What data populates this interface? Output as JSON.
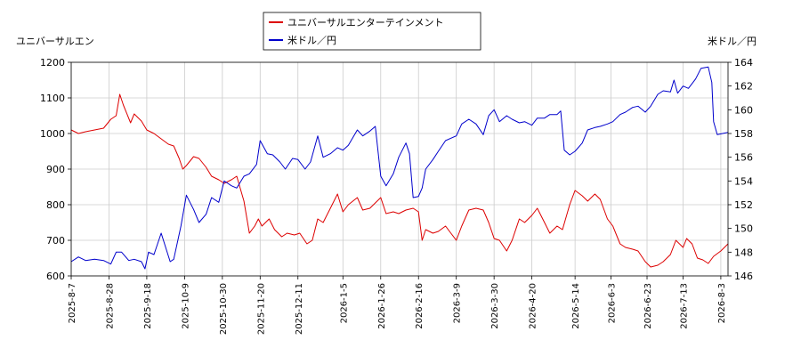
{
  "chart_data": {
    "type": "line",
    "left_axis_label": "ユニバーサルエン",
    "right_axis_label": "米ドル／円",
    "legend": {
      "placement": "top-center",
      "entries": [
        "ユニバーサルエンターテインメント",
        "米ドル／円"
      ]
    },
    "colors": {
      "stock": "#dd0000",
      "fx": "#0000cc",
      "grid": "#cccccc",
      "plot_border": "#000000"
    },
    "grid": true,
    "left_ylim": [
      600,
      1200
    ],
    "left_yticks": [
      600,
      700,
      800,
      900,
      1000,
      1100,
      1200
    ],
    "right_ylim": [
      146,
      164
    ],
    "right_yticks": [
      146,
      148,
      150,
      152,
      154,
      156,
      158,
      160,
      162,
      164
    ],
    "x_ticks": [
      "2025-8-7",
      "2025-8-28",
      "2025-9-18",
      "2025-10-9",
      "2025-10-30",
      "2025-11-20",
      "2025-12-11",
      "2026-1-5",
      "2026-1-26",
      "2026-2-16",
      "2026-3-9",
      "2026-3-30",
      "2026-4-20",
      "2026-5-14",
      "2026-6-3",
      "2026-6-23",
      "2026-7-13",
      "2026-8-3"
    ],
    "x_range": [
      "2025-8-7",
      "2026-8-7"
    ],
    "series": [
      {
        "name": "ユニバーサルエンターテインメント",
        "axis": "left",
        "points": [
          [
            "2025-8-7",
            1010
          ],
          [
            "2025-8-11",
            1000
          ],
          [
            "2025-8-15",
            1005
          ],
          [
            "2025-8-20",
            1010
          ],
          [
            "2025-8-25",
            1015
          ],
          [
            "2025-8-29",
            1040
          ],
          [
            "2025-9-1",
            1050
          ],
          [
            "2025-9-3",
            1110
          ],
          [
            "2025-9-5",
            1080
          ],
          [
            "2025-9-9",
            1030
          ],
          [
            "2025-9-11",
            1055
          ],
          [
            "2025-9-15",
            1035
          ],
          [
            "2025-9-18",
            1010
          ],
          [
            "2025-9-22",
            1000
          ],
          [
            "2025-9-26",
            985
          ],
          [
            "2025-9-30",
            970
          ],
          [
            "2025-10-3",
            965
          ],
          [
            "2025-10-6",
            930
          ],
          [
            "2025-10-8",
            900
          ],
          [
            "2025-10-10",
            910
          ],
          [
            "2025-10-14",
            935
          ],
          [
            "2025-10-17",
            930
          ],
          [
            "2025-10-21",
            905
          ],
          [
            "2025-10-24",
            880
          ],
          [
            "2025-10-28",
            870
          ],
          [
            "2025-10-31",
            860
          ],
          [
            "2025-11-4",
            870
          ],
          [
            "2025-11-7",
            880
          ],
          [
            "2025-11-11",
            810
          ],
          [
            "2025-11-14",
            720
          ],
          [
            "2025-11-17",
            740
          ],
          [
            "2025-11-19",
            760
          ],
          [
            "2025-11-21",
            740
          ],
          [
            "2025-11-25",
            760
          ],
          [
            "2025-11-28",
            730
          ],
          [
            "2025-12-2",
            710
          ],
          [
            "2025-12-5",
            720
          ],
          [
            "2025-12-9",
            715
          ],
          [
            "2025-12-12",
            720
          ],
          [
            "2025-12-16",
            690
          ],
          [
            "2025-12-19",
            700
          ],
          [
            "2025-12-22",
            760
          ],
          [
            "2025-12-25",
            750
          ],
          [
            "2025-12-29",
            790
          ],
          [
            "2026-1-2",
            830
          ],
          [
            "2026-1-5",
            780
          ],
          [
            "2026-1-8",
            800
          ],
          [
            "2026-1-13",
            820
          ],
          [
            "2026-1-16",
            785
          ],
          [
            "2026-1-20",
            790
          ],
          [
            "2026-1-23",
            805
          ],
          [
            "2026-1-26",
            820
          ],
          [
            "2026-1-29",
            775
          ],
          [
            "2026-2-2",
            780
          ],
          [
            "2026-2-5",
            775
          ],
          [
            "2026-2-9",
            785
          ],
          [
            "2026-2-13",
            790
          ],
          [
            "2026-2-16",
            780
          ],
          [
            "2026-2-18",
            700
          ],
          [
            "2026-2-20",
            730
          ],
          [
            "2026-2-24",
            720
          ],
          [
            "2026-2-27",
            725
          ],
          [
            "2026-3-3",
            740
          ],
          [
            "2026-3-6",
            720
          ],
          [
            "2026-3-9",
            700
          ],
          [
            "2026-3-12",
            740
          ],
          [
            "2026-3-16",
            785
          ],
          [
            "2026-3-20",
            790
          ],
          [
            "2026-3-24",
            785
          ],
          [
            "2026-3-27",
            750
          ],
          [
            "2026-3-30",
            705
          ],
          [
            "2026-4-2",
            700
          ],
          [
            "2026-4-6",
            670
          ],
          [
            "2026-4-9",
            700
          ],
          [
            "2026-4-13",
            760
          ],
          [
            "2026-4-16",
            750
          ],
          [
            "2026-4-20",
            770
          ],
          [
            "2026-4-23",
            790
          ],
          [
            "2026-4-27",
            750
          ],
          [
            "2026-4-30",
            720
          ],
          [
            "2026-5-4",
            740
          ],
          [
            "2026-5-7",
            730
          ],
          [
            "2026-5-11",
            800
          ],
          [
            "2026-5-14",
            840
          ],
          [
            "2026-5-18",
            825
          ],
          [
            "2026-5-21",
            810
          ],
          [
            "2026-5-25",
            830
          ],
          [
            "2026-5-28",
            815
          ],
          [
            "2026-6-1",
            760
          ],
          [
            "2026-6-4",
            740
          ],
          [
            "2026-6-8",
            690
          ],
          [
            "2026-6-11",
            680
          ],
          [
            "2026-6-15",
            675
          ],
          [
            "2026-6-18",
            670
          ],
          [
            "2026-6-22",
            640
          ],
          [
            "2026-6-25",
            625
          ],
          [
            "2026-6-29",
            630
          ],
          [
            "2026-7-2",
            640
          ],
          [
            "2026-7-6",
            660
          ],
          [
            "2026-7-9",
            700
          ],
          [
            "2026-7-13",
            680
          ],
          [
            "2026-7-15",
            705
          ],
          [
            "2026-7-18",
            690
          ],
          [
            "2026-7-21",
            650
          ],
          [
            "2026-7-24",
            645
          ],
          [
            "2026-7-27",
            635
          ],
          [
            "2026-7-30",
            655
          ],
          [
            "2026-8-3",
            670
          ],
          [
            "2026-8-7",
            690
          ]
        ]
      },
      {
        "name": "米ドル／円",
        "axis": "right",
        "points": [
          [
            "2025-8-7",
            147.2
          ],
          [
            "2025-8-11",
            147.6
          ],
          [
            "2025-8-15",
            147.3
          ],
          [
            "2025-8-20",
            147.4
          ],
          [
            "2025-8-25",
            147.3
          ],
          [
            "2025-8-29",
            147.0
          ],
          [
            "2025-9-1",
            148.0
          ],
          [
            "2025-9-4",
            148.0
          ],
          [
            "2025-9-8",
            147.3
          ],
          [
            "2025-9-11",
            147.4
          ],
          [
            "2025-9-15",
            147.2
          ],
          [
            "2025-9-17",
            146.6
          ],
          [
            "2025-9-19",
            148.0
          ],
          [
            "2025-9-22",
            147.8
          ],
          [
            "2025-9-26",
            149.6
          ],
          [
            "2025-10-1",
            147.2
          ],
          [
            "2025-10-3",
            147.4
          ],
          [
            "2025-10-7",
            150.2
          ],
          [
            "2025-10-10",
            152.8
          ],
          [
            "2025-10-14",
            151.6
          ],
          [
            "2025-10-17",
            150.5
          ],
          [
            "2025-10-21",
            151.2
          ],
          [
            "2025-10-24",
            152.6
          ],
          [
            "2025-10-28",
            152.2
          ],
          [
            "2025-10-31",
            154.0
          ],
          [
            "2025-11-4",
            153.6
          ],
          [
            "2025-11-7",
            153.4
          ],
          [
            "2025-11-11",
            154.4
          ],
          [
            "2025-11-14",
            154.6
          ],
          [
            "2025-11-18",
            155.4
          ],
          [
            "2025-11-20",
            157.4
          ],
          [
            "2025-11-24",
            156.3
          ],
          [
            "2025-11-27",
            156.2
          ],
          [
            "2025-12-1",
            155.6
          ],
          [
            "2025-12-4",
            155.0
          ],
          [
            "2025-12-8",
            155.9
          ],
          [
            "2025-12-11",
            155.8
          ],
          [
            "2025-12-15",
            155.0
          ],
          [
            "2025-12-18",
            155.6
          ],
          [
            "2025-12-22",
            157.8
          ],
          [
            "2025-12-25",
            156.0
          ],
          [
            "2025-12-29",
            156.3
          ],
          [
            "2026-1-2",
            156.8
          ],
          [
            "2026-1-5",
            156.6
          ],
          [
            "2026-1-8",
            157.0
          ],
          [
            "2026-1-13",
            158.3
          ],
          [
            "2026-1-16",
            157.8
          ],
          [
            "2026-1-20",
            158.2
          ],
          [
            "2026-1-23",
            158.6
          ],
          [
            "2026-1-26",
            154.4
          ],
          [
            "2026-1-29",
            153.6
          ],
          [
            "2026-2-2",
            154.6
          ],
          [
            "2026-2-5",
            156.0
          ],
          [
            "2026-2-9",
            157.2
          ],
          [
            "2026-2-11",
            156.3
          ],
          [
            "2026-2-13",
            152.6
          ],
          [
            "2026-2-16",
            152.7
          ],
          [
            "2026-2-18",
            153.4
          ],
          [
            "2026-2-20",
            155.0
          ],
          [
            "2026-2-24",
            155.8
          ],
          [
            "2026-2-27",
            156.5
          ],
          [
            "2026-3-3",
            157.4
          ],
          [
            "2026-3-6",
            157.6
          ],
          [
            "2026-3-9",
            157.8
          ],
          [
            "2026-3-12",
            158.8
          ],
          [
            "2026-3-16",
            159.2
          ],
          [
            "2026-3-20",
            158.8
          ],
          [
            "2026-3-24",
            157.9
          ],
          [
            "2026-3-27",
            159.5
          ],
          [
            "2026-3-30",
            160.0
          ],
          [
            "2026-4-2",
            159.0
          ],
          [
            "2026-4-6",
            159.5
          ],
          [
            "2026-4-9",
            159.2
          ],
          [
            "2026-4-13",
            158.9
          ],
          [
            "2026-4-16",
            159.0
          ],
          [
            "2026-4-20",
            158.7
          ],
          [
            "2026-4-23",
            159.3
          ],
          [
            "2026-4-27",
            159.3
          ],
          [
            "2026-4-30",
            159.6
          ],
          [
            "2026-5-4",
            159.6
          ],
          [
            "2026-5-6",
            159.9
          ],
          [
            "2026-5-8",
            156.6
          ],
          [
            "2026-5-11",
            156.2
          ],
          [
            "2026-5-14",
            156.5
          ],
          [
            "2026-5-18",
            157.2
          ],
          [
            "2026-5-21",
            158.3
          ],
          [
            "2026-5-25",
            158.5
          ],
          [
            "2026-5-28",
            158.6
          ],
          [
            "2026-6-1",
            158.8
          ],
          [
            "2026-6-4",
            159.0
          ],
          [
            "2026-6-8",
            159.6
          ],
          [
            "2026-6-11",
            159.8
          ],
          [
            "2026-6-15",
            160.2
          ],
          [
            "2026-6-18",
            160.3
          ],
          [
            "2026-6-22",
            159.8
          ],
          [
            "2026-6-25",
            160.3
          ],
          [
            "2026-6-29",
            161.3
          ],
          [
            "2026-7-2",
            161.6
          ],
          [
            "2026-7-6",
            161.5
          ],
          [
            "2026-7-8",
            162.5
          ],
          [
            "2026-7-10",
            161.4
          ],
          [
            "2026-7-13",
            162.0
          ],
          [
            "2026-7-16",
            161.8
          ],
          [
            "2026-7-20",
            162.6
          ],
          [
            "2026-7-23",
            163.5
          ],
          [
            "2026-7-27",
            163.6
          ],
          [
            "2026-7-29",
            162.3
          ],
          [
            "2026-7-30",
            159.0
          ],
          [
            "2026-8-1",
            157.9
          ],
          [
            "2026-8-4",
            158.0
          ],
          [
            "2026-8-7",
            158.1
          ]
        ]
      }
    ]
  }
}
